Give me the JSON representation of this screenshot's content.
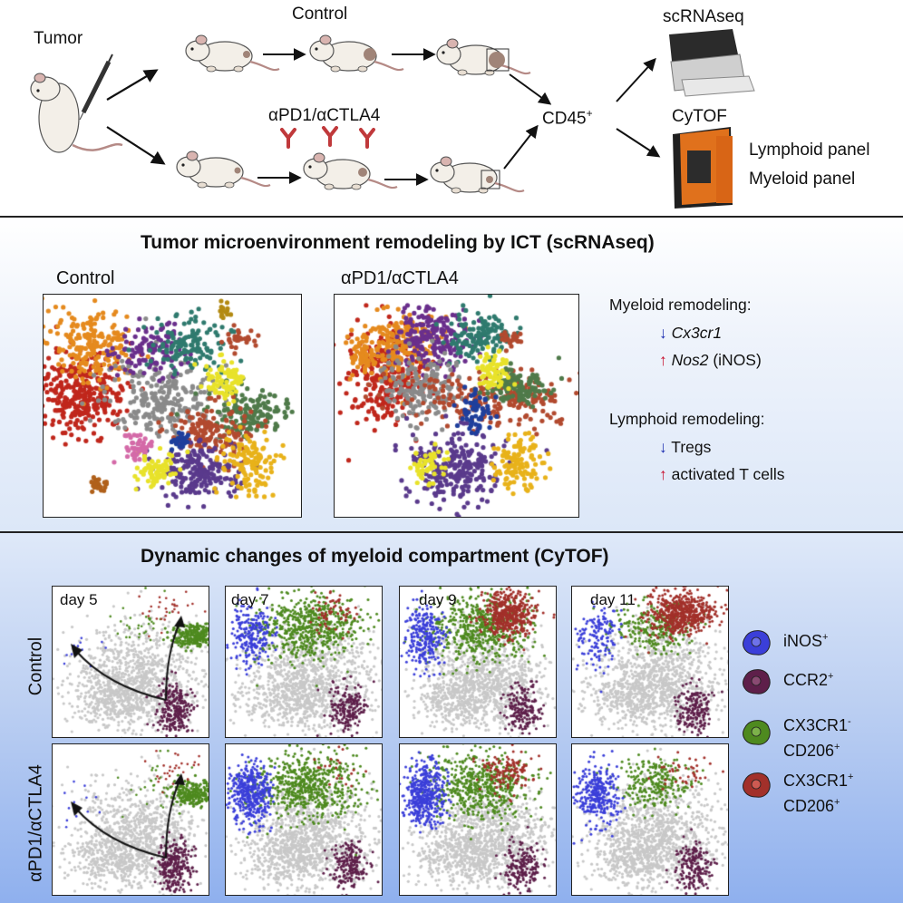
{
  "header": {
    "tumor_label": "Tumor",
    "control_label": "Control",
    "treatment_label": "αPD1/αCTLA4",
    "cd45_label": "CD45",
    "cd45_sup": "+",
    "scrnaseq_label": "scRNAseq",
    "cytof_label": "CyTOF",
    "panels": [
      "Lymphoid panel",
      "Myeloid panel"
    ]
  },
  "scrnaseq_section": {
    "title": "Tumor microenvironment remodeling by ICT (scRNAseq)",
    "control_label": "Control",
    "treatment_label": "αPD1/αCTLA4",
    "myeloid_heading": "Myeloid remodeling:",
    "myeloid_items": [
      {
        "dir": "down",
        "gene": "Cx3cr1",
        "extra": ""
      },
      {
        "dir": "up",
        "gene": "Nos2",
        "extra": " (iNOS)"
      }
    ],
    "lymphoid_heading": "Lymphoid remodeling:",
    "lymphoid_items": [
      {
        "dir": "down",
        "text": "Tregs"
      },
      {
        "dir": "up",
        "text": "activated T cells"
      }
    ]
  },
  "cytof_section": {
    "title": "Dynamic changes of myeloid compartment (CyTOF)",
    "row_labels": [
      "Control",
      "αPD1/αCTLA4"
    ],
    "days": [
      "day 5",
      "day 7",
      "day 9",
      "day 11"
    ],
    "legend": [
      {
        "name": "iNOS",
        "sup": "+",
        "name2": "",
        "sup2": "",
        "color": "#3b3fd9"
      },
      {
        "name": "CCR2",
        "sup": "+",
        "name2": "",
        "sup2": "",
        "color": "#5e1f4a"
      },
      {
        "name": "CX3CR1",
        "sup": "-",
        "name2": "CD206",
        "sup2": "+",
        "color": "#4e8a1f"
      },
      {
        "name": "CX3CR1",
        "sup": "+",
        "name2": "CD206",
        "sup2": "+",
        "color": "#a2302a"
      }
    ]
  },
  "colors": {
    "up_arrow": "#c8102e",
    "down_arrow": "#1a2bb0",
    "antibody": "#c0393b",
    "grey_cells": "#c8c8c8"
  }
}
